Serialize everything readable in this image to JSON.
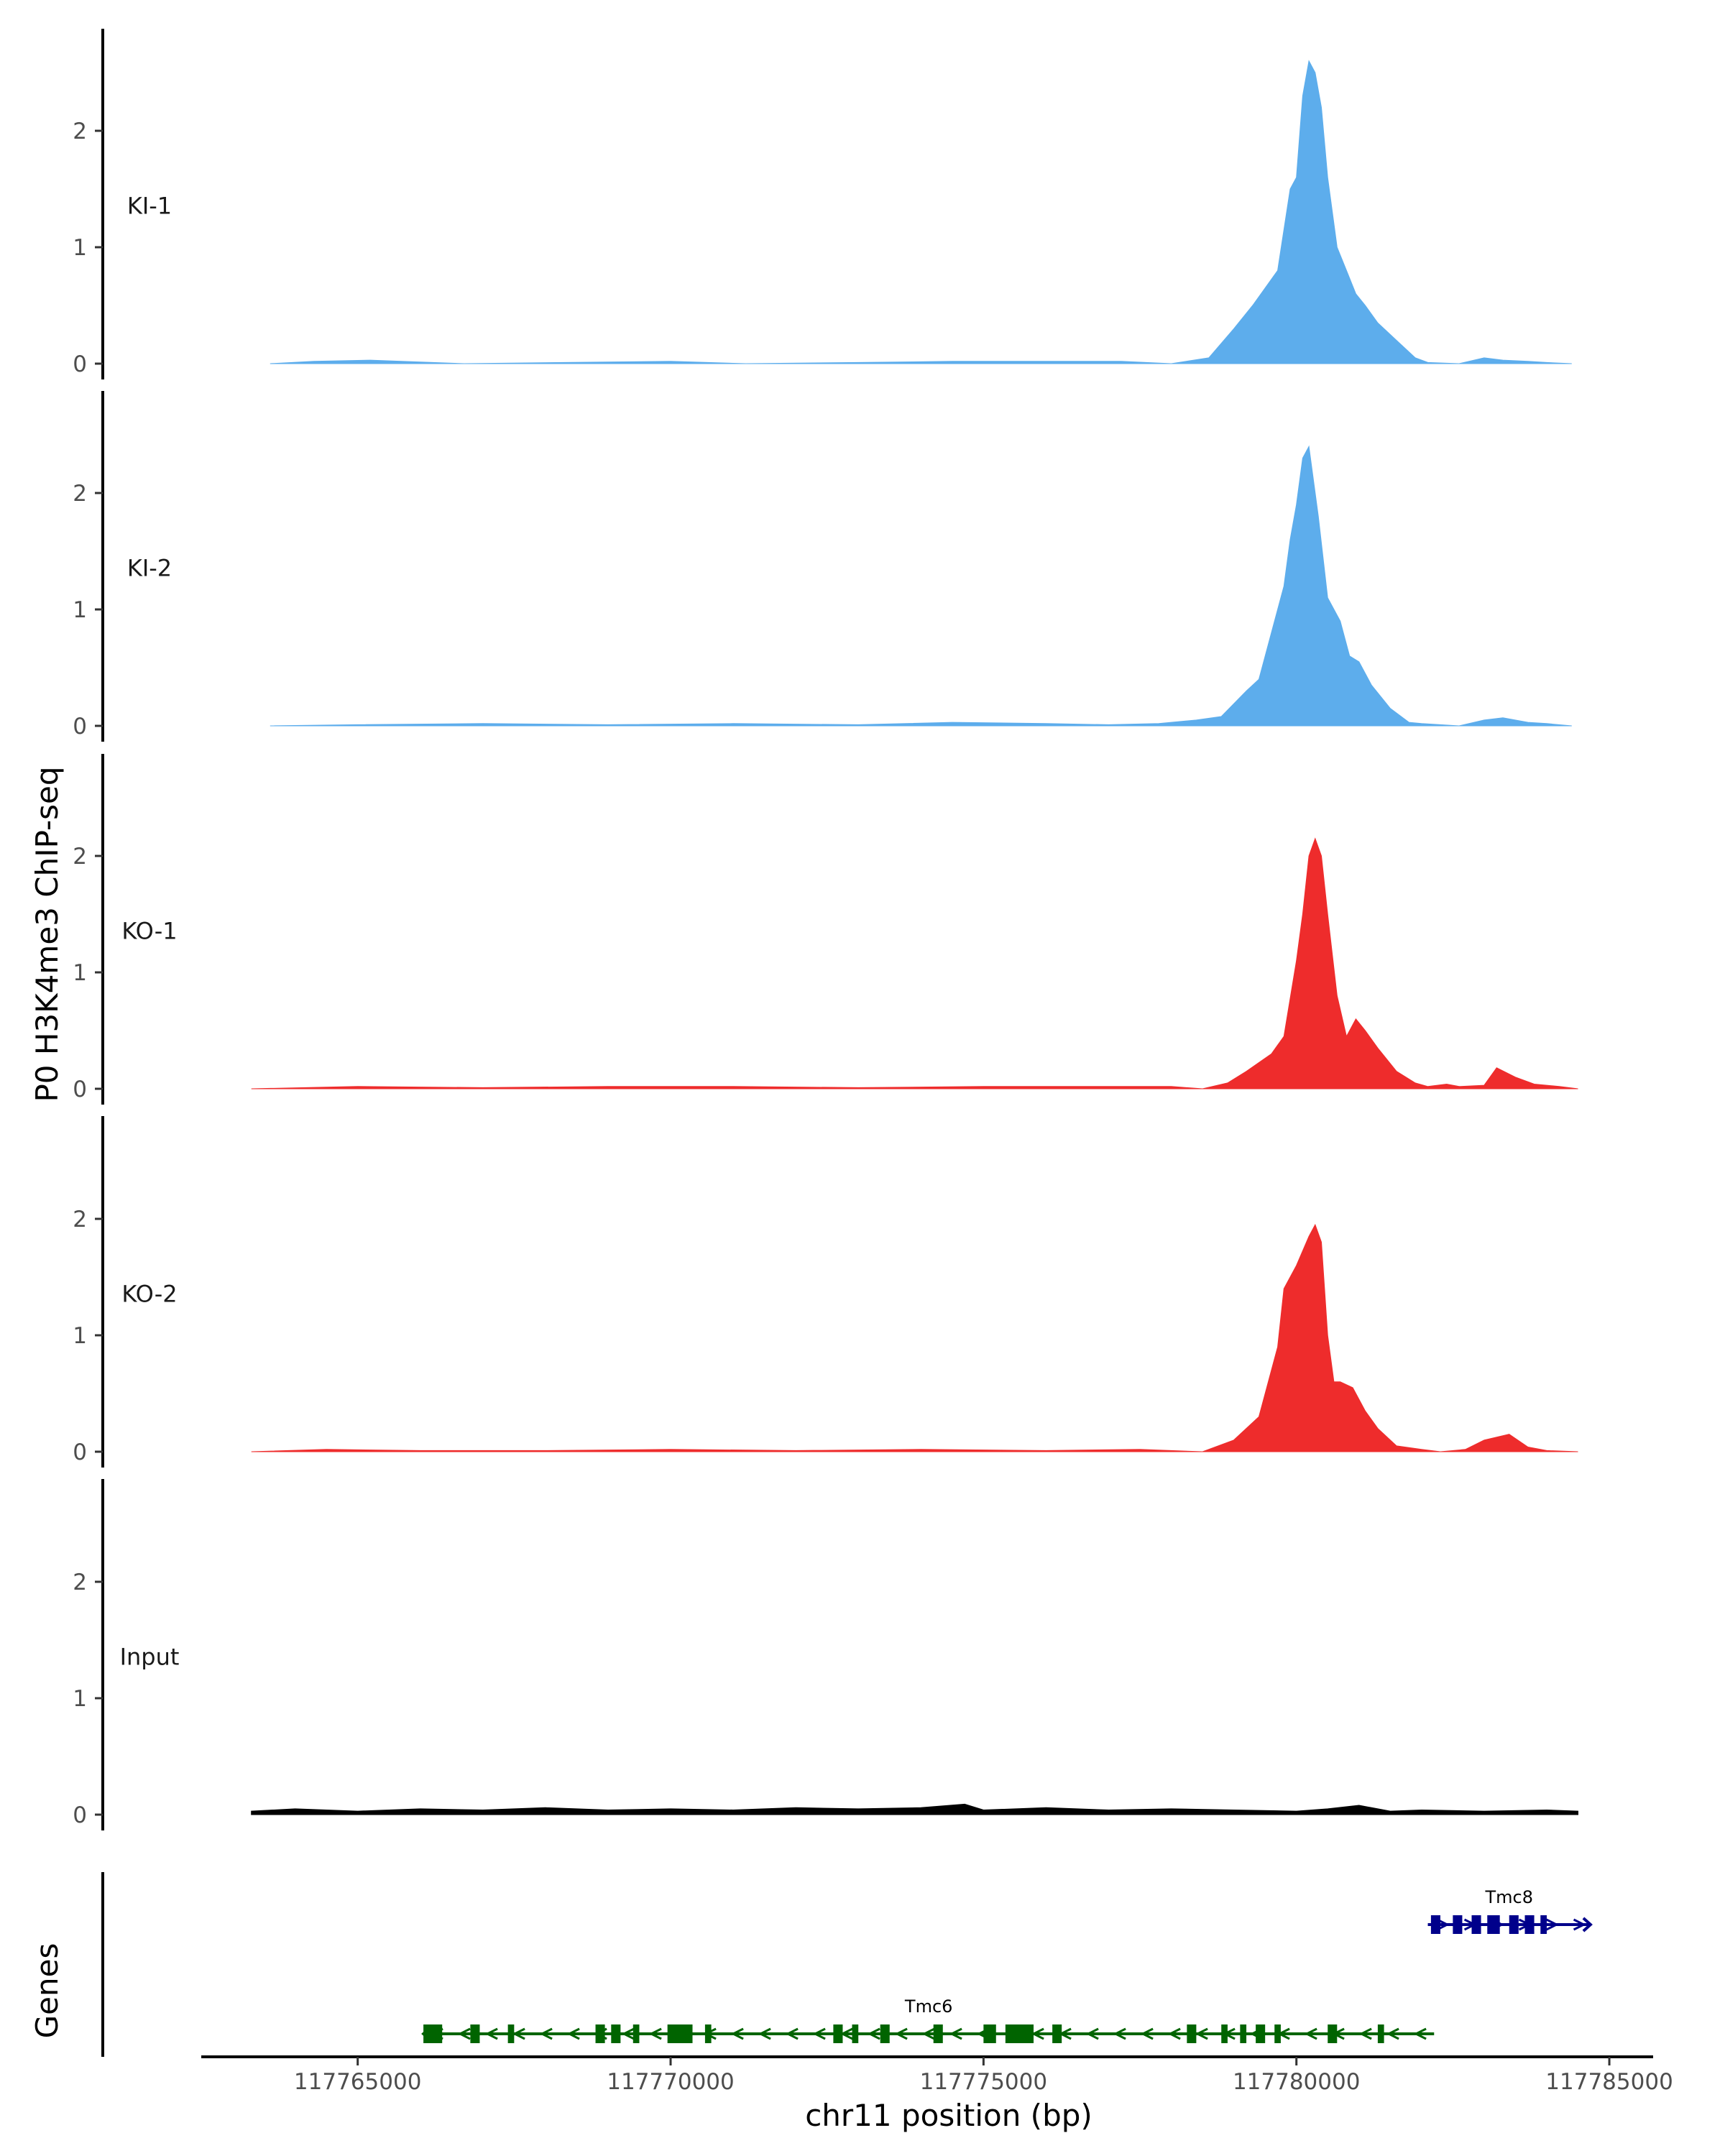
{
  "chart_data": {
    "type": "area",
    "title": "",
    "ylabel": "P0 H3K4me3 ChIP-seq",
    "xlabel": "chr11 position (bp)",
    "genes_label": "Genes",
    "xlim": [
      117762500,
      117785700
    ],
    "x_ticks": [
      117765000,
      117770000,
      117775000,
      117780000,
      117785000
    ],
    "x_tick_labels": [
      "117765000",
      "117770000",
      "117775000",
      "117780000",
      "117785000"
    ],
    "ylim": [
      0,
      2.8
    ],
    "y_ticks": [
      0,
      1,
      2
    ],
    "y_tick_labels": [
      "0",
      "1",
      "2"
    ],
    "tracks": [
      {
        "name": "KI-1",
        "color": "#5DADEC",
        "x": [
          117763600,
          117764300,
          117765200,
          117766700,
          117768300,
          117770000,
          117771200,
          117773000,
          117774500,
          117775600,
          117777200,
          117778000,
          117778600,
          117779000,
          117779300,
          117779700,
          117779900,
          117780000,
          117780100,
          117780200,
          117780300,
          117780400,
          117780500,
          117780650,
          117780800,
          117780950,
          117781100,
          117781300,
          117781600,
          117781900,
          117782100,
          117782600,
          117783000,
          117783300,
          117783700,
          117784000,
          117784400
        ],
        "values": [
          0.0,
          0.02,
          0.03,
          0.0,
          0.01,
          0.02,
          0.0,
          0.01,
          0.02,
          0.02,
          0.02,
          0.0,
          0.05,
          0.3,
          0.5,
          0.8,
          1.5,
          1.6,
          2.3,
          2.6,
          2.5,
          2.2,
          1.6,
          1.0,
          0.8,
          0.6,
          0.5,
          0.35,
          0.2,
          0.05,
          0.01,
          0.0,
          0.05,
          0.03,
          0.02,
          0.01,
          0.0
        ]
      },
      {
        "name": "KI-2",
        "color": "#5DADEC",
        "x": [
          117763600,
          117765000,
          117767000,
          117769000,
          117771000,
          117773000,
          117774500,
          117776000,
          117777000,
          117777800,
          117778400,
          117778800,
          117779200,
          117779400,
          117779600,
          117779800,
          117779900,
          117780000,
          117780100,
          117780200,
          117780350,
          117780500,
          117780700,
          117780850,
          117781000,
          117781200,
          117781500,
          117781800,
          117782000,
          117782600,
          117783000,
          117783300,
          117783700,
          117784000,
          117784400
        ],
        "values": [
          0.0,
          0.01,
          0.02,
          0.01,
          0.02,
          0.01,
          0.03,
          0.02,
          0.01,
          0.02,
          0.05,
          0.08,
          0.3,
          0.4,
          0.8,
          1.2,
          1.6,
          1.9,
          2.3,
          2.4,
          1.8,
          1.1,
          0.9,
          0.6,
          0.55,
          0.35,
          0.15,
          0.03,
          0.02,
          0.0,
          0.05,
          0.07,
          0.03,
          0.02,
          0.0
        ]
      },
      {
        "name": "KO-1",
        "color": "#EE2C2C",
        "x": [
          117763300,
          117765000,
          117767000,
          117769000,
          117771000,
          117773000,
          117775000,
          117777000,
          117778000,
          117778500,
          117778900,
          117779200,
          117779600,
          117779800,
          117780000,
          117780100,
          117780200,
          117780300,
          117780400,
          117780500,
          117780650,
          117780800,
          117780950,
          117781100,
          117781300,
          117781600,
          117781900,
          117782100,
          117782400,
          117782600,
          117783000,
          117783200,
          117783500,
          117783800,
          117784200,
          117784500
        ],
        "values": [
          0.0,
          0.02,
          0.01,
          0.02,
          0.02,
          0.01,
          0.02,
          0.02,
          0.02,
          0.0,
          0.05,
          0.15,
          0.3,
          0.45,
          1.1,
          1.5,
          2.0,
          2.15,
          2.0,
          1.5,
          0.8,
          0.45,
          0.6,
          0.5,
          0.35,
          0.15,
          0.05,
          0.02,
          0.04,
          0.02,
          0.03,
          0.18,
          0.1,
          0.04,
          0.02,
          0.0
        ]
      },
      {
        "name": "KO-2",
        "color": "#EE2C2C",
        "x": [
          117763300,
          117764500,
          117766000,
          117768000,
          117770000,
          117772000,
          117774000,
          117776000,
          117777500,
          117778500,
          117779000,
          117779400,
          117779700,
          117779800,
          117780000,
          117780200,
          117780300,
          117780400,
          117780500,
          117780600,
          117780700,
          117780900,
          117781100,
          117781300,
          117781600,
          117782000,
          117782300,
          117782700,
          117783000,
          117783400,
          117783700,
          117784000,
          117784500
        ],
        "values": [
          0.0,
          0.02,
          0.01,
          0.01,
          0.02,
          0.01,
          0.02,
          0.01,
          0.02,
          0.0,
          0.1,
          0.3,
          0.9,
          1.4,
          1.6,
          1.85,
          1.95,
          1.8,
          1.0,
          0.6,
          0.6,
          0.55,
          0.35,
          0.2,
          0.05,
          0.02,
          0.0,
          0.02,
          0.1,
          0.15,
          0.04,
          0.01,
          0.0
        ]
      },
      {
        "name": "Input",
        "color": "#000000",
        "x": [
          117763300,
          117764000,
          117765000,
          117766000,
          117767000,
          117768000,
          117769000,
          117770000,
          117771000,
          117772000,
          117773000,
          117774000,
          117774700,
          117775000,
          117776000,
          117777000,
          117778000,
          117779000,
          117780000,
          117780500,
          117781000,
          117781500,
          117782000,
          117783000,
          117784000,
          117784500
        ],
        "values": [
          0.03,
          0.05,
          0.03,
          0.05,
          0.04,
          0.06,
          0.04,
          0.05,
          0.04,
          0.06,
          0.05,
          0.06,
          0.09,
          0.04,
          0.06,
          0.04,
          0.05,
          0.04,
          0.03,
          0.05,
          0.08,
          0.03,
          0.04,
          0.03,
          0.04,
          0.03
        ]
      }
    ],
    "genes": [
      {
        "name": "Tmc8",
        "strand": "+",
        "color": "#00008B",
        "start": 117782100,
        "end": 117784700,
        "exons": [
          [
            117782150,
            117782300
          ],
          [
            117782500,
            117782650
          ],
          [
            117782800,
            117782950
          ],
          [
            117783050,
            117783250
          ],
          [
            117783400,
            117783550
          ],
          [
            117783650,
            117783800
          ],
          [
            117783900,
            117784000
          ]
        ]
      },
      {
        "name": "Tmc6",
        "strand": "-",
        "color": "#006400",
        "start": 117766050,
        "end": 117782200,
        "exons": [
          [
            117766050,
            117766350
          ],
          [
            117766800,
            117766950
          ],
          [
            117767400,
            117767500
          ],
          [
            117768800,
            117768950
          ],
          [
            117769050,
            117769200
          ],
          [
            117769400,
            117769500
          ],
          [
            117769950,
            117770350
          ],
          [
            117770550,
            117770650
          ],
          [
            117772600,
            117772750
          ],
          [
            117772900,
            117773000
          ],
          [
            117773350,
            117773500
          ],
          [
            117774200,
            117774350
          ],
          [
            117775000,
            117775200
          ],
          [
            117775350,
            117775800
          ],
          [
            117776100,
            117776250
          ],
          [
            117778250,
            117778400
          ],
          [
            117778800,
            117778900
          ],
          [
            117779100,
            117779200
          ],
          [
            117779350,
            117779500
          ],
          [
            117779650,
            117779750
          ],
          [
            117780500,
            117780650
          ],
          [
            117781300,
            117781400
          ]
        ]
      }
    ]
  }
}
